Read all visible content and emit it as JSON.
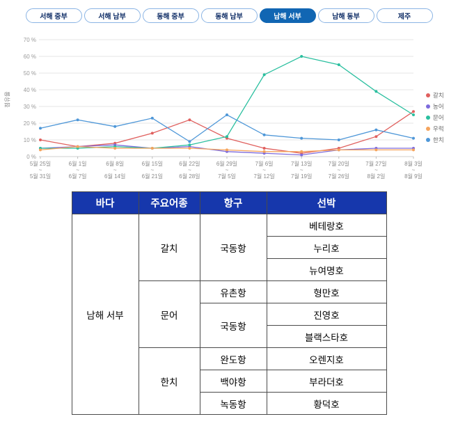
{
  "colors": {
    "tab_active": "#1166b3",
    "tab_border": "#8ab4e4",
    "table_header": "#1637ac"
  },
  "tabs": [
    {
      "label": "서해 중부",
      "active": false
    },
    {
      "label": "서해 남부",
      "active": false
    },
    {
      "label": "동해 중부",
      "active": false
    },
    {
      "label": "동해 남부",
      "active": false
    },
    {
      "label": "남해 서부",
      "active": true
    },
    {
      "label": "남해 동부",
      "active": false
    },
    {
      "label": "제주",
      "active": false
    }
  ],
  "chart_data": {
    "type": "line",
    "title": "",
    "xlabel": "",
    "ylabel": "점유율",
    "ylim": [
      0,
      70
    ],
    "yticks": [
      0,
      10,
      20,
      30,
      40,
      50,
      60,
      70
    ],
    "ytick_suffix": " %",
    "x_tick_separator": "~",
    "grid": true,
    "legend_position": "right",
    "categories": [
      {
        "start": "5월 25일",
        "end": "5월 31일"
      },
      {
        "start": "6월 1일",
        "end": "6월 7일"
      },
      {
        "start": "6월 8일",
        "end": "6월 14일"
      },
      {
        "start": "6월 15일",
        "end": "6월 21일"
      },
      {
        "start": "6월 22일",
        "end": "6월 28일"
      },
      {
        "start": "6월 29일",
        "end": "7월 5일"
      },
      {
        "start": "7월 6일",
        "end": "7월 12일"
      },
      {
        "start": "7월 13일",
        "end": "7월 19일"
      },
      {
        "start": "7월 20일",
        "end": "7월 26일"
      },
      {
        "start": "7월 27일",
        "end": "8월 2일"
      },
      {
        "start": "8월 3일",
        "end": "8월 9일"
      }
    ],
    "series": [
      {
        "name": "갈치",
        "color": "#e0605e",
        "values": [
          10,
          6,
          8,
          14,
          22,
          11,
          5,
          2,
          5,
          12,
          27
        ]
      },
      {
        "name": "농어",
        "color": "#7d6bdc",
        "values": [
          5,
          6,
          7,
          5,
          6,
          3,
          2,
          1,
          4,
          5,
          5
        ]
      },
      {
        "name": "문어",
        "color": "#2abf9f",
        "values": [
          5,
          5,
          6,
          5,
          7,
          12,
          49,
          60,
          55,
          39,
          25
        ]
      },
      {
        "name": "우럭",
        "color": "#f5a45d",
        "values": [
          4,
          6,
          5,
          5,
          5,
          4,
          3,
          3,
          4,
          4,
          4
        ]
      },
      {
        "name": "한치",
        "color": "#4e97d8",
        "values": [
          17,
          22,
          18,
          23,
          9,
          25,
          13,
          11,
          10,
          16,
          11
        ]
      }
    ]
  },
  "table": {
    "headers": [
      "바다",
      "주요어종",
      "항구",
      "선박"
    ],
    "sea": "남해 서부",
    "groups": [
      {
        "species": "갈치",
        "ports": [
          {
            "name": "국동항",
            "ships": [
              "베테랑호",
              "누리호",
              "뉴여명호"
            ]
          }
        ]
      },
      {
        "species": "문어",
        "ports": [
          {
            "name": "유촌항",
            "ships": [
              "형만호"
            ]
          },
          {
            "name": "국동항",
            "ships": [
              "진영호",
              "블랙스타호"
            ]
          }
        ]
      },
      {
        "species": "한치",
        "ports": [
          {
            "name": "완도항",
            "ships": [
              "오렌지호"
            ]
          },
          {
            "name": "백야항",
            "ships": [
              "부라더호"
            ]
          },
          {
            "name": "녹동항",
            "ships": [
              "황덕호"
            ]
          }
        ]
      }
    ]
  }
}
